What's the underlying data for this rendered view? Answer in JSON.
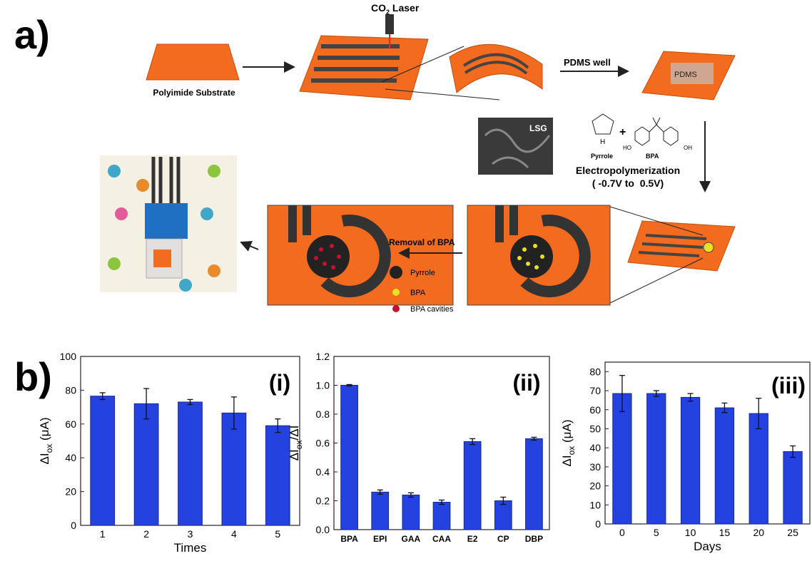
{
  "diagram": {
    "panel_a": "a)",
    "panel_b": "b)",
    "laser": [
      "CO",
      "2",
      " Laser"
    ],
    "substrate": "Polyimide Substrate",
    "pdms_well": "PDMS well",
    "pdms": "PDMS",
    "lsg": "LSG",
    "pyrrole_h": "H",
    "pyrrole": "Pyrrole",
    "plus": "+",
    "bpa": "BPA",
    "ho": "HO",
    "oh": "OH",
    "electropolymerization": "Electropolymerization",
    "potential": "( -0.7V to  0.5V)",
    "removal": "Removal of BPA",
    "legend": [
      "Pyrrole",
      "BPA",
      "BPA cavities"
    ]
  },
  "chart_data": [
    {
      "type": "bar",
      "annotation": "(i)",
      "categories": [
        "1",
        "2",
        "3",
        "4",
        "5"
      ],
      "values": [
        76.5,
        72,
        73,
        66.5,
        59
      ],
      "errors": [
        2,
        9,
        1.5,
        9.5,
        4
      ],
      "color": "#2442e0",
      "ylim": [
        0,
        100
      ],
      "yticks": [
        0,
        20,
        40,
        60,
        80,
        100
      ],
      "xlabel": "Times",
      "ylabel": [
        "ΔI",
        "ox",
        " (μA)"
      ]
    },
    {
      "type": "bar",
      "annotation": "(ii)",
      "categories": [
        "BPA",
        "EPI",
        "GAA",
        "CAA",
        "E2",
        "CP",
        "DBP"
      ],
      "values": [
        1.0,
        0.26,
        0.24,
        0.19,
        0.61,
        0.2,
        0.63
      ],
      "errors": [
        0.005,
        0.015,
        0.015,
        0.015,
        0.02,
        0.025,
        0.01
      ],
      "color": "#2442e0",
      "ylim": [
        0,
        1.2
      ],
      "yticks": [
        {
          "value": 0,
          "label": "0.0"
        },
        0.2,
        0.4,
        0.6,
        0.8,
        {
          "value": 1,
          "label": "1.0"
        },
        1.2
      ],
      "ylabel": [
        "ΔI",
        "ox",
        "/ΔI"
      ]
    },
    {
      "type": "bar",
      "annotation": "(iii)",
      "categories": [
        "0",
        "5",
        "10",
        "15",
        "20",
        "25"
      ],
      "values": [
        68.5,
        68.5,
        66.5,
        61,
        58,
        38
      ],
      "errors": [
        9.5,
        1.5,
        2,
        2.5,
        8,
        3
      ],
      "color": "#2442e0",
      "ylim": [
        0,
        85
      ],
      "yticks": [
        0,
        10,
        20,
        30,
        40,
        50,
        60,
        70,
        80
      ],
      "xlabel": "Days",
      "ylabel": [
        "ΔI",
        "ox",
        " (μA)"
      ]
    }
  ]
}
